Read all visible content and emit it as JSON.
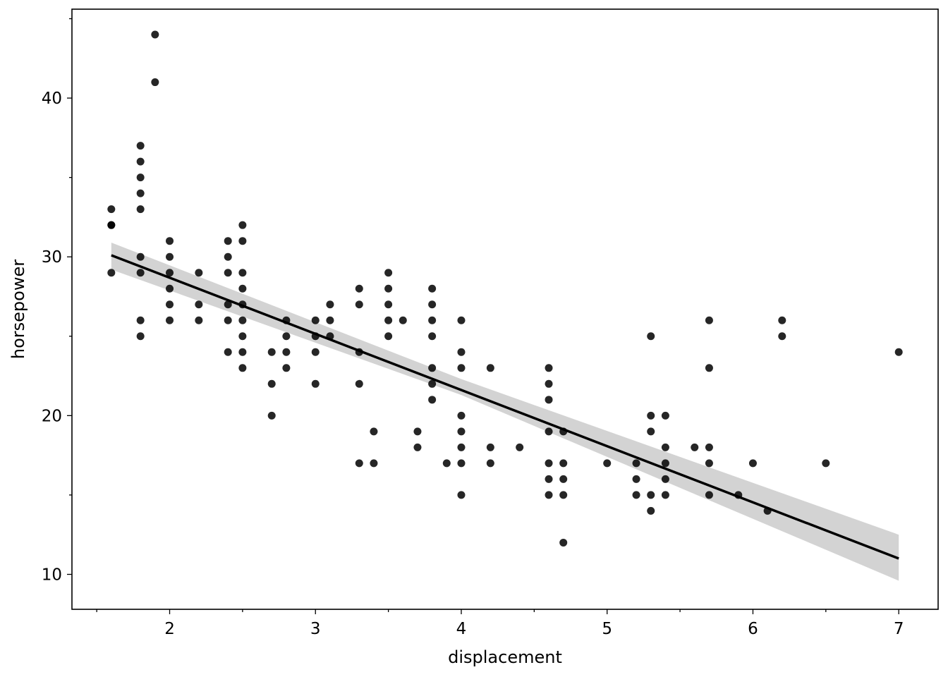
{
  "chart_data": {
    "type": "scatter",
    "title": "",
    "xlabel": "displacement",
    "ylabel": "horsepower",
    "xlim": [
      1.33,
      7.27
    ],
    "ylim": [
      7.8,
      45.6
    ],
    "x_ticks": [
      2,
      3,
      4,
      5,
      6,
      7
    ],
    "y_ticks": [
      10,
      20,
      30,
      40
    ],
    "x_minor_step": 0.5,
    "y_minor_step": 5,
    "grid": false,
    "legend": "none",
    "colors": {
      "points": "#000000",
      "line": "#000000",
      "band": "#d3d3d3"
    },
    "points": [
      [
        1.6,
        33
      ],
      [
        1.6,
        32
      ],
      [
        1.6,
        32
      ],
      [
        1.6,
        29
      ],
      [
        1.8,
        37
      ],
      [
        1.8,
        36
      ],
      [
        1.8,
        35
      ],
      [
        1.8,
        34
      ],
      [
        1.8,
        33
      ],
      [
        1.8,
        30
      ],
      [
        1.8,
        29
      ],
      [
        1.8,
        26
      ],
      [
        1.8,
        25
      ],
      [
        1.9,
        44
      ],
      [
        1.9,
        41
      ],
      [
        2.0,
        31
      ],
      [
        2.0,
        30
      ],
      [
        2.0,
        29
      ],
      [
        2.0,
        28
      ],
      [
        2.0,
        27
      ],
      [
        2.0,
        26
      ],
      [
        2.2,
        29
      ],
      [
        2.2,
        27
      ],
      [
        2.2,
        26
      ],
      [
        2.4,
        31
      ],
      [
        2.4,
        30
      ],
      [
        2.4,
        29
      ],
      [
        2.4,
        27
      ],
      [
        2.4,
        26
      ],
      [
        2.4,
        24
      ],
      [
        2.5,
        32
      ],
      [
        2.5,
        31
      ],
      [
        2.5,
        29
      ],
      [
        2.5,
        28
      ],
      [
        2.5,
        27
      ],
      [
        2.5,
        26
      ],
      [
        2.5,
        25
      ],
      [
        2.5,
        24
      ],
      [
        2.5,
        23
      ],
      [
        2.7,
        24
      ],
      [
        2.7,
        22
      ],
      [
        2.7,
        20
      ],
      [
        2.8,
        26
      ],
      [
        2.8,
        25
      ],
      [
        2.8,
        24
      ],
      [
        2.8,
        23
      ],
      [
        3.0,
        26
      ],
      [
        3.0,
        25
      ],
      [
        3.0,
        24
      ],
      [
        3.0,
        22
      ],
      [
        3.1,
        27
      ],
      [
        3.1,
        26
      ],
      [
        3.1,
        25
      ],
      [
        3.3,
        28
      ],
      [
        3.3,
        27
      ],
      [
        3.3,
        24
      ],
      [
        3.3,
        22
      ],
      [
        3.3,
        17
      ],
      [
        3.4,
        19
      ],
      [
        3.4,
        17
      ],
      [
        3.5,
        29
      ],
      [
        3.5,
        28
      ],
      [
        3.5,
        27
      ],
      [
        3.5,
        26
      ],
      [
        3.5,
        25
      ],
      [
        3.6,
        26
      ],
      [
        3.7,
        19
      ],
      [
        3.7,
        18
      ],
      [
        3.8,
        28
      ],
      [
        3.8,
        27
      ],
      [
        3.8,
        26
      ],
      [
        3.8,
        25
      ],
      [
        3.8,
        23
      ],
      [
        3.8,
        22
      ],
      [
        3.8,
        21
      ],
      [
        3.9,
        17
      ],
      [
        4.0,
        26
      ],
      [
        4.0,
        24
      ],
      [
        4.0,
        23
      ],
      [
        4.0,
        20
      ],
      [
        4.0,
        19
      ],
      [
        4.0,
        18
      ],
      [
        4.0,
        17
      ],
      [
        4.0,
        15
      ],
      [
        4.2,
        23
      ],
      [
        4.2,
        18
      ],
      [
        4.2,
        17
      ],
      [
        4.4,
        18
      ],
      [
        4.6,
        23
      ],
      [
        4.6,
        22
      ],
      [
        4.6,
        21
      ],
      [
        4.6,
        19
      ],
      [
        4.6,
        17
      ],
      [
        4.6,
        16
      ],
      [
        4.6,
        15
      ],
      [
        4.7,
        19
      ],
      [
        4.7,
        17
      ],
      [
        4.7,
        16
      ],
      [
        4.7,
        15
      ],
      [
        4.7,
        12
      ],
      [
        5.0,
        17
      ],
      [
        5.2,
        17
      ],
      [
        5.2,
        16
      ],
      [
        5.2,
        15
      ],
      [
        5.3,
        25
      ],
      [
        5.3,
        20
      ],
      [
        5.3,
        19
      ],
      [
        5.3,
        15
      ],
      [
        5.3,
        14
      ],
      [
        5.4,
        20
      ],
      [
        5.4,
        18
      ],
      [
        5.4,
        17
      ],
      [
        5.4,
        16
      ],
      [
        5.4,
        15
      ],
      [
        5.6,
        18
      ],
      [
        5.7,
        26
      ],
      [
        5.7,
        23
      ],
      [
        5.7,
        18
      ],
      [
        5.7,
        17
      ],
      [
        5.7,
        15
      ],
      [
        5.9,
        15
      ],
      [
        6.0,
        17
      ],
      [
        6.1,
        14
      ],
      [
        6.2,
        26
      ],
      [
        6.2,
        25
      ],
      [
        6.5,
        17
      ],
      [
        7.0,
        24
      ]
    ],
    "regression": {
      "line": [
        [
          1.6,
          30.1
        ],
        [
          7.0,
          11.0
        ]
      ],
      "band_upper": [
        [
          1.6,
          30.9
        ],
        [
          4.0,
          22.3
        ],
        [
          7.0,
          12.5
        ]
      ],
      "band_lower": [
        [
          1.6,
          29.2
        ],
        [
          4.0,
          21.3
        ],
        [
          7.0,
          9.6
        ]
      ]
    }
  }
}
